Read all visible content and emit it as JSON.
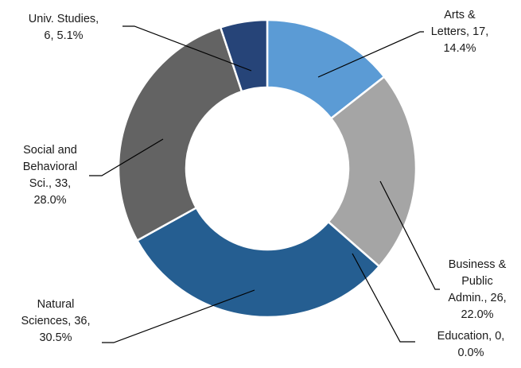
{
  "chart_data": {
    "type": "pie",
    "variant": "donut",
    "categories": [
      "Arts & Letters",
      "Business & Public Admin.",
      "Education",
      "Natural Sciences",
      "Social and Behavioral Sci.",
      "Univ. Studies"
    ],
    "values": [
      17,
      26,
      0,
      36,
      33,
      6
    ],
    "percents": [
      "14.4%",
      "22.0%",
      "0.0%",
      "30.5%",
      "28.0%",
      "5.1%"
    ],
    "colors": [
      "#5b9bd5",
      "#a5a5a5",
      "#4472c4",
      "#255e91",
      "#636363",
      "#264478"
    ],
    "labels": [
      {
        "lines": [
          "Arts &",
          "Letters, 17,",
          "14.4%"
        ]
      },
      {
        "lines": [
          "Business &",
          "Public",
          "Admin., 26,",
          "22.0%"
        ]
      },
      {
        "lines": [
          "Education, 0,",
          "0.0%"
        ]
      },
      {
        "lines": [
          "Natural",
          "Sciences, 36,",
          "30.5%"
        ]
      },
      {
        "lines": [
          "Social and",
          "Behavioral",
          "Sci., 33,",
          "28.0%"
        ]
      },
      {
        "lines": [
          "Univ. Studies,",
          "6, 5.1%"
        ]
      }
    ],
    "legend": "none"
  }
}
